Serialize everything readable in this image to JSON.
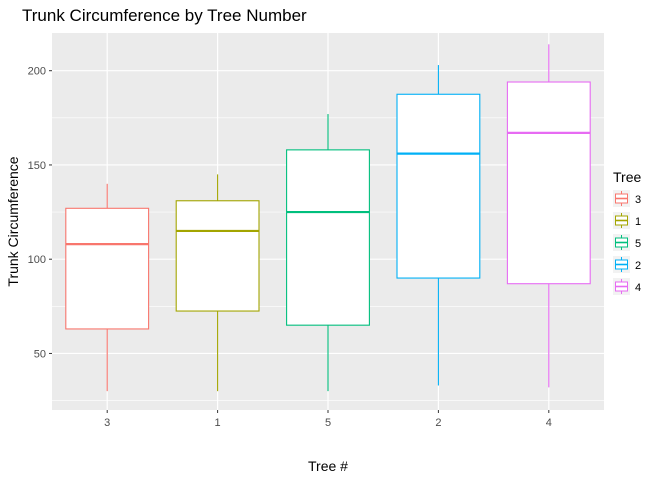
{
  "chart_data": {
    "type": "boxplot",
    "title": "Trunk Circumference by Tree Number",
    "xlabel": "Tree #",
    "ylabel": "Trunk Circumference",
    "ylim": [
      20,
      220
    ],
    "yticks": [
      50,
      100,
      150,
      200
    ],
    "grid": true,
    "legend": {
      "title": "Tree",
      "position": "right"
    },
    "categories": [
      "3",
      "1",
      "5",
      "2",
      "4"
    ],
    "series": [
      {
        "name": "3",
        "color": "#F8766D",
        "min": 30,
        "q1": 63,
        "median": 108,
        "q3": 127,
        "max": 140
      },
      {
        "name": "1",
        "color": "#A3A500",
        "min": 30,
        "q1": 72.5,
        "median": 115,
        "q3": 131,
        "max": 145
      },
      {
        "name": "5",
        "color": "#00BF7D",
        "min": 30,
        "q1": 65,
        "median": 125,
        "q3": 158,
        "max": 177
      },
      {
        "name": "2",
        "color": "#00B0F6",
        "min": 33,
        "q1": 90,
        "median": 156,
        "q3": 187.5,
        "max": 203
      },
      {
        "name": "4",
        "color": "#E76BF3",
        "min": 32,
        "q1": 87,
        "median": 167,
        "q3": 194,
        "max": 214
      }
    ]
  }
}
